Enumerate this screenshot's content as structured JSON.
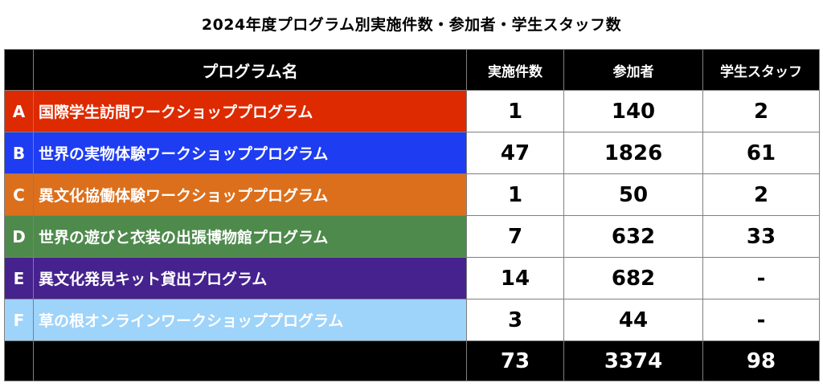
{
  "title": "2024年度プログラム別実施件数・参加者・学生スタッフ数",
  "headers": {
    "blank": "",
    "program_name": "プログラム名",
    "count": "実施件数",
    "participants": "参加者",
    "staff": "学生スタッフ"
  },
  "rows": [
    {
      "letter": "A",
      "name": "国際学生訪問ワークショッププログラム",
      "count": "1",
      "participants": "140",
      "staff": "2",
      "color": "#de2a00"
    },
    {
      "letter": "B",
      "name": "世界の実物体験ワークショッププログラム",
      "count": "47",
      "participants": "1826",
      "staff": "61",
      "color": "#1e3cf2"
    },
    {
      "letter": "C",
      "name": "異文化協働体験ワークショッププログラム",
      "count": "1",
      "participants": "50",
      "staff": "2",
      "color": "#dc6f1c"
    },
    {
      "letter": "D",
      "name": "世界の遊びと衣装の出張博物館プログラム",
      "count": "7",
      "participants": "632",
      "staff": "33",
      "color": "#4e8a4c"
    },
    {
      "letter": "E",
      "name": "異文化発見キット貸出プログラム",
      "count": "14",
      "participants": "682",
      "staff": "-",
      "color": "#46228e"
    },
    {
      "letter": "F",
      "name": "草の根オンラインワークショッププログラム",
      "count": "3",
      "participants": "44",
      "staff": "-",
      "color": "#9ed3fa"
    }
  ],
  "totals": {
    "count": "73",
    "participants": "3374",
    "staff": "98"
  }
}
